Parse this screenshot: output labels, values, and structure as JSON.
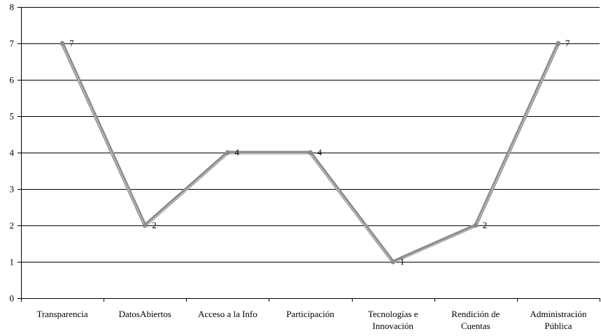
{
  "chart_data": {
    "type": "line",
    "title": "",
    "xlabel": "",
    "ylabel": "",
    "categories": [
      [
        "Transparencia"
      ],
      [
        "DatosAbiertos"
      ],
      [
        "Acceso a la Info"
      ],
      [
        "Participación"
      ],
      [
        "Tecnologías e",
        "Innovación"
      ],
      [
        "Rendición de",
        "Cuentas"
      ],
      [
        "Administración",
        "Pública"
      ]
    ],
    "series": [
      {
        "values": [
          7,
          2,
          4,
          4,
          1,
          2,
          7
        ]
      }
    ],
    "ylim": [
      0,
      8
    ],
    "yticks": [
      0,
      1,
      2,
      3,
      4,
      5,
      6,
      7,
      8
    ],
    "grid": true,
    "data_labels": true,
    "colors": {
      "line": "#8c8c8c",
      "line_highlight": "#bdbdbd",
      "grid": "#000000",
      "axis": "#000000"
    }
  }
}
